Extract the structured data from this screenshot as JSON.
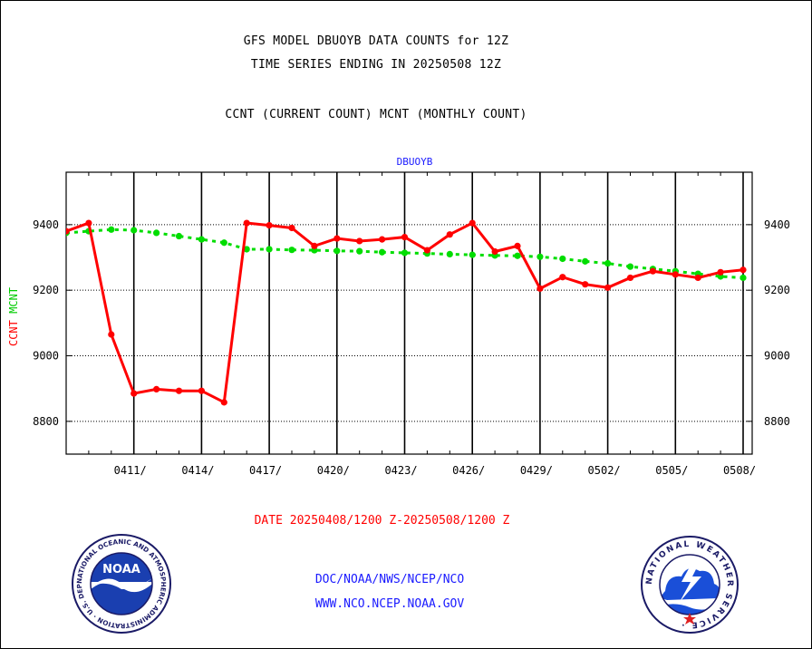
{
  "header": {
    "title_line1": "GFS MODEL DBUOYB DATA COUNTS for 12Z",
    "title_line2": "TIME SERIES ENDING IN 20250508 12Z",
    "subtitle": "CCNT (CURRENT COUNT) MCNT (MONTHLY COUNT)"
  },
  "chart_data": {
    "type": "line",
    "title": "DBUOYB",
    "ylabel_parts": [
      {
        "text": "CCNT",
        "color": "#ff0000"
      },
      {
        "text": "MCNT",
        "color": "#00cc00"
      }
    ],
    "xlabel": "DATE 20250408/1200 Z-20250508/1200 Z",
    "x_range": [
      0,
      30
    ],
    "ylim": [
      8700,
      9560
    ],
    "y_ticks": [
      8800,
      9000,
      9200,
      9400
    ],
    "x_ticks": [
      {
        "x": 3,
        "label": "0411/"
      },
      {
        "x": 6,
        "label": "0414/"
      },
      {
        "x": 9,
        "label": "0417/"
      },
      {
        "x": 12,
        "label": "0420/"
      },
      {
        "x": 15,
        "label": "0423/"
      },
      {
        "x": 18,
        "label": "0426/"
      },
      {
        "x": 21,
        "label": "0429/"
      },
      {
        "x": 24,
        "label": "0502/"
      },
      {
        "x": 27,
        "label": "0505/"
      },
      {
        "x": 30,
        "label": "0508/"
      }
    ],
    "grid": true,
    "series": [
      {
        "name": "CCNT",
        "color": "#ff0000",
        "style": "solid",
        "x": [
          0,
          1,
          2,
          3,
          4,
          5,
          6,
          7,
          8,
          9,
          10,
          11,
          12,
          13,
          14,
          15,
          16,
          17,
          18,
          19,
          20,
          21,
          22,
          23,
          24,
          25,
          26,
          27,
          28,
          29,
          30
        ],
        "values": [
          9380,
          9405,
          9065,
          8885,
          8898,
          8893,
          8893,
          8858,
          9405,
          9398,
          9390,
          9335,
          9358,
          9350,
          9355,
          9362,
          9322,
          9370,
          9405,
          9318,
          9335,
          9205,
          9240,
          9218,
          9208,
          9238,
          9258,
          9248,
          9238,
          9255,
          9262
        ]
      },
      {
        "name": "MCNT",
        "color": "#00dd00",
        "style": "dashed",
        "x": [
          0,
          1,
          2,
          3,
          4,
          5,
          6,
          7,
          8,
          9,
          10,
          11,
          12,
          13,
          14,
          15,
          16,
          17,
          18,
          19,
          20,
          21,
          22,
          23,
          24,
          25,
          26,
          27,
          28,
          29,
          30
        ],
        "values": [
          9375,
          9380,
          9385,
          9383,
          9375,
          9365,
          9355,
          9345,
          9325,
          9325,
          9323,
          9322,
          9320,
          9319,
          9316,
          9314,
          9312,
          9310,
          9308,
          9306,
          9305,
          9302,
          9296,
          9288,
          9282,
          9272,
          9265,
          9258,
          9250,
          9242,
          9238
        ]
      }
    ]
  },
  "footer": {
    "link1": "DOC/NOAA/NWS/NCEP/NCO",
    "link2": "WWW.NCO.NCEP.NOAA.GOV"
  },
  "logos": {
    "noaa_text": "NOAA",
    "noaa_ring": "NATIONAL OCEANIC AND ATMOSPHERIC ADMINISTRATION · U.S. DEPARTMENT OF COMMERCE ·",
    "nws_ring": "NATIONAL WEATHER SERVICE ·"
  }
}
